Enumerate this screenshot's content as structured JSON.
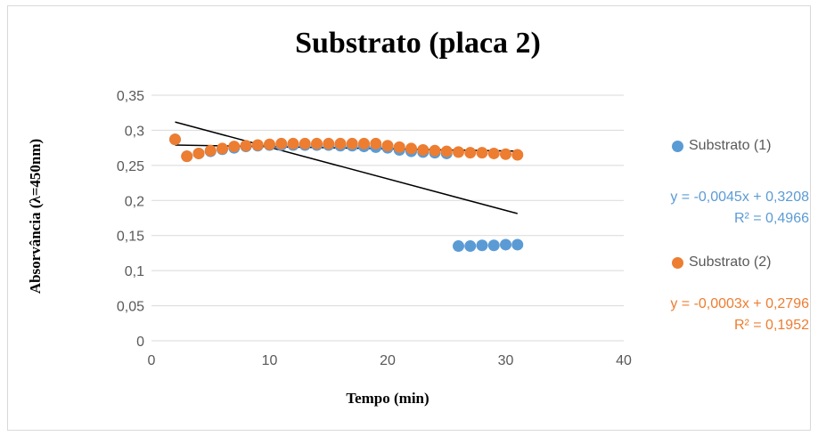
{
  "chart_data": {
    "type": "scatter",
    "title": "Substrato (placa 2)",
    "xlabel": "Tempo (min)",
    "ylabel": "Absorvância (λ=450nm)",
    "xlim": [
      0,
      40
    ],
    "ylim": [
      0,
      0.35
    ],
    "x_ticks": [
      "0",
      "10",
      "20",
      "30",
      "40"
    ],
    "y_ticks": [
      "0",
      "0,05",
      "0,1",
      "0,15",
      "0,2",
      "0,25",
      "0,3",
      "0,35"
    ],
    "grid": "horizontal",
    "legend_position": "right",
    "series": [
      {
        "name": "Substrato (1)",
        "color": "#5b9bd5",
        "x": [
          2,
          3,
          4,
          5,
          6,
          7,
          8,
          9,
          10,
          11,
          12,
          13,
          14,
          15,
          16,
          17,
          18,
          19,
          20,
          21,
          22,
          23,
          24,
          25,
          26,
          27,
          28,
          29,
          30,
          31
        ],
        "y": [
          0.287,
          0.263,
          0.267,
          0.27,
          0.273,
          0.275,
          0.277,
          0.278,
          0.279,
          0.279,
          0.279,
          0.279,
          0.279,
          0.279,
          0.278,
          0.278,
          0.277,
          0.276,
          0.275,
          0.272,
          0.27,
          0.269,
          0.268,
          0.267,
          0.135,
          0.135,
          0.136,
          0.136,
          0.137,
          0.137
        ],
        "trendline": {
          "slope": -0.0045,
          "intercept": 0.3208
        },
        "equation": "y = -0,0045x + 0,3208",
        "r2": "R² = 0,4966"
      },
      {
        "name": "Substrato (2)",
        "color": "#ed7d31",
        "x": [
          2,
          3,
          4,
          5,
          6,
          7,
          8,
          9,
          10,
          11,
          12,
          13,
          14,
          15,
          16,
          17,
          18,
          19,
          20,
          21,
          22,
          23,
          24,
          25,
          26,
          27,
          28,
          29,
          30,
          31
        ],
        "y": [
          0.287,
          0.263,
          0.267,
          0.271,
          0.274,
          0.277,
          0.278,
          0.279,
          0.28,
          0.281,
          0.281,
          0.281,
          0.281,
          0.281,
          0.281,
          0.281,
          0.281,
          0.281,
          0.278,
          0.276,
          0.274,
          0.272,
          0.271,
          0.27,
          0.269,
          0.268,
          0.268,
          0.267,
          0.266,
          0.265
        ],
        "trendline": {
          "slope": -0.0003,
          "intercept": 0.2796
        },
        "equation": "y = -0,0003x + 0,2796",
        "r2": "R² = 0,1952"
      }
    ]
  }
}
